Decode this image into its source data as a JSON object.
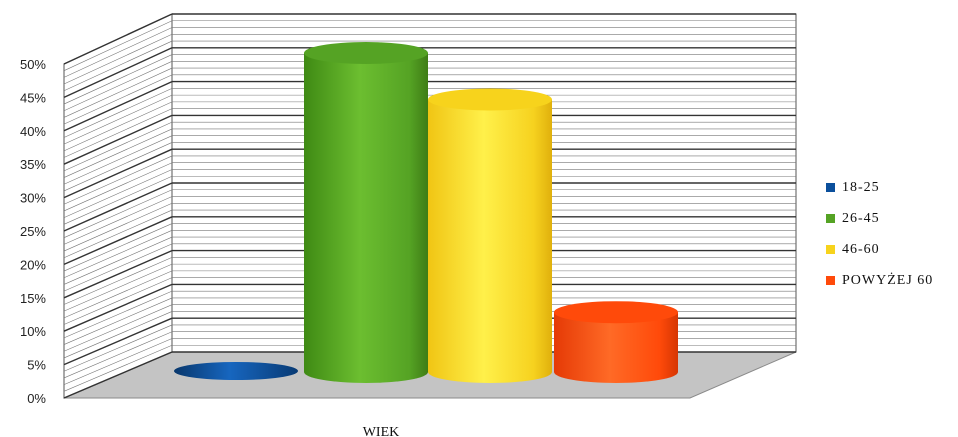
{
  "chart_data": {
    "type": "bar",
    "title": "",
    "xlabel": "WIEK",
    "ylabel": "",
    "ylim": [
      0,
      50
    ],
    "y_ticks": [
      "0%",
      "5%",
      "10%",
      "15%",
      "20%",
      "25%",
      "30%",
      "35%",
      "40%",
      "45%",
      "50%"
    ],
    "categories": [
      "WIEK"
    ],
    "series": [
      {
        "name": "18-25",
        "values": [
          0
        ],
        "color": "#0b4f9c"
      },
      {
        "name": "26-45",
        "values": [
          48
        ],
        "color": "#55a324"
      },
      {
        "name": "46-60",
        "values": [
          41
        ],
        "color": "#f7d31c"
      },
      {
        "name": "POWYŻEJ 60",
        "values": [
          9
        ],
        "color": "#ff4a0a"
      }
    ],
    "grid": true,
    "legend_position": "right",
    "shape": "3d-cylinder"
  }
}
